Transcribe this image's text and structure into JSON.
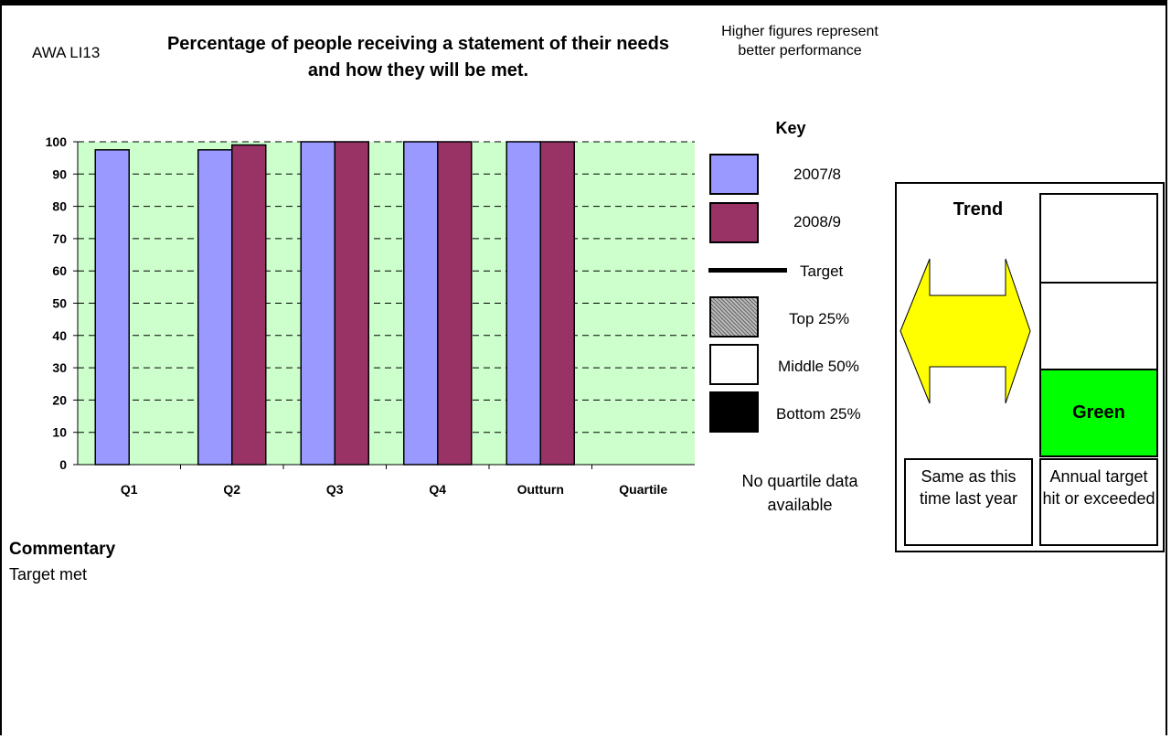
{
  "header": {
    "code": "AWA LI13",
    "title": "Percentage of people receiving a statement of their needs and how they will be met.",
    "note": "Higher figures represent better performance"
  },
  "chart_data": {
    "type": "bar",
    "categories": [
      "Q1",
      "Q2",
      "Q3",
      "Q4",
      "Outturn",
      "Quartile"
    ],
    "series": [
      {
        "name": "2007/8",
        "color": "#9999ff",
        "values": [
          97.5,
          97.5,
          100,
          100,
          100,
          null
        ]
      },
      {
        "name": "2008/9",
        "color": "#993366",
        "values": [
          null,
          99,
          100,
          100,
          100,
          null
        ]
      }
    ],
    "ylim": [
      0,
      100
    ],
    "yticks": [
      "0",
      "10",
      "20",
      "30",
      "40",
      "50",
      "60",
      "70",
      "80",
      "90",
      "100"
    ],
    "grid": true,
    "plot_background": "#ccffcc"
  },
  "key": {
    "title": "Key",
    "items": [
      {
        "label": "2007/8",
        "swatch": "#9999ff"
      },
      {
        "label": "2008/9",
        "swatch": "#993366"
      },
      {
        "label": "Target",
        "swatch": "line"
      },
      {
        "label": "Top 25%",
        "swatch": "hatched-grey"
      },
      {
        "label": "Middle 50%",
        "swatch": "#ffffff"
      },
      {
        "label": "Bottom 25%",
        "swatch": "#000000"
      }
    ]
  },
  "quartile_note": "No quartile data available",
  "status": {
    "trend_title": "Trend",
    "trend_icon": "double-arrow-icon",
    "trend_color": "#ffff00",
    "trend_caption": "Same as this time last year",
    "rag_label": "Green",
    "rag_color": "#00ff00",
    "rag_caption": "Annual target hit or exceeded"
  },
  "commentary": {
    "heading": "Commentary",
    "text": "Target met"
  }
}
